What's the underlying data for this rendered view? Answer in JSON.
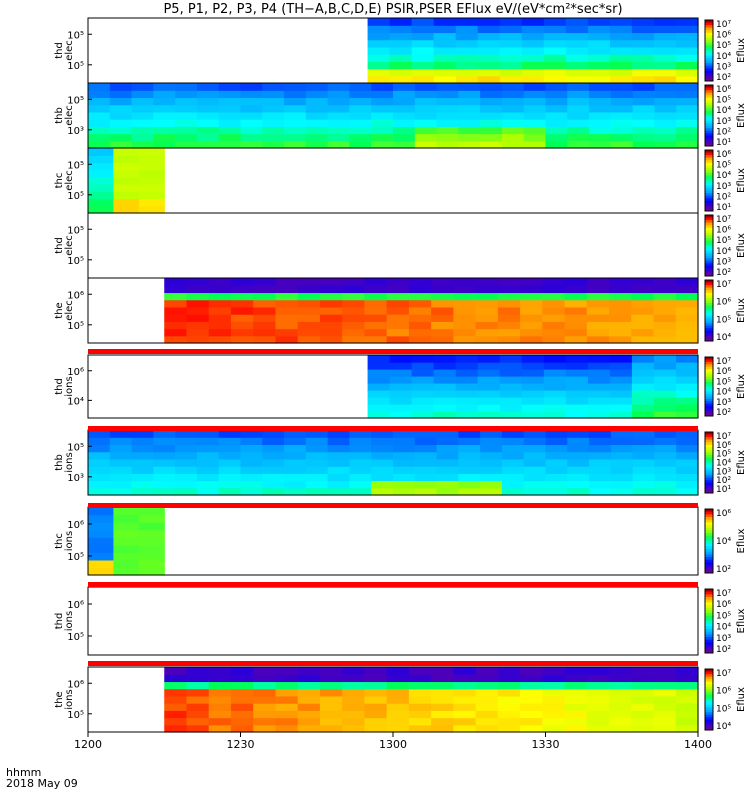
{
  "title": "P5, P1, P2, P3, P4 (TH−A,B,C,D,E) PSIR,PSER EFlux eV/(eV*cm²*sec*sr)",
  "footer": {
    "line1": "hhmm",
    "line2": "2018 May 09"
  },
  "chart_data": {
    "type": "heatmap",
    "x_ticks": [
      "1200",
      "1230",
      "1300",
      "1330",
      "1400"
    ],
    "xlim": [
      "1200",
      "1400"
    ],
    "colorbar_label": "Eflux",
    "panels": [
      {
        "ylabel": [
          "thd",
          "elec"
        ],
        "yticks": [
          "10⁵",
          "10⁵"
        ],
        "cbar_ticks": [
          "10⁷",
          "10⁶",
          "10⁵",
          "10⁴",
          "10³",
          "10²"
        ],
        "data_start": "1255",
        "data_end": "1400"
      },
      {
        "ylabel": [
          "thb",
          "elec"
        ],
        "yticks": [
          "10⁵",
          "10³"
        ],
        "cbar_ticks": [
          "10⁶",
          "10⁵",
          "10⁴",
          "10³",
          "10²",
          "10¹"
        ],
        "data_start": "1200",
        "data_end": "1400"
      },
      {
        "ylabel": [
          "thc",
          "elec"
        ],
        "yticks": [
          "10⁵",
          "10⁵"
        ],
        "cbar_ticks": [
          "10⁶",
          "10⁵",
          "10⁴",
          "10³",
          "10²",
          "10¹"
        ],
        "data_start": "1200",
        "data_end": "1215"
      },
      {
        "ylabel": [
          "thd",
          "elec"
        ],
        "yticks": [
          "10⁵",
          "10⁵"
        ],
        "cbar_ticks": [
          "10⁷",
          "10⁶",
          "10⁵",
          "10⁴",
          "10³",
          "10²"
        ],
        "data_start": null,
        "data_end": null
      },
      {
        "ylabel": [
          "the",
          "elec"
        ],
        "yticks": [
          "10⁶",
          "10⁵"
        ],
        "cbar_ticks": [
          "10⁷",
          "10⁶",
          "10⁵",
          "10⁴"
        ],
        "data_start": "1215",
        "data_end": "1400"
      },
      {
        "ylabel": [
          "thd",
          "ions"
        ],
        "yticks": [
          "10⁶",
          "10⁴"
        ],
        "cbar_ticks": [
          "10⁷",
          "10⁶",
          "10⁵",
          "10⁴",
          "10³",
          "10²"
        ],
        "data_start": "1255",
        "data_end": "1400"
      },
      {
        "ylabel": [
          "thb",
          "ions"
        ],
        "yticks": [
          "10⁵",
          "10³"
        ],
        "cbar_ticks": [
          "10⁷",
          "10⁶",
          "10⁵",
          "10⁴",
          "10³",
          "10²",
          "10¹"
        ],
        "data_start": "1200",
        "data_end": "1400"
      },
      {
        "ylabel": [
          "thc",
          "ions"
        ],
        "yticks": [
          "10⁶",
          "10⁵"
        ],
        "cbar_ticks": [
          "10⁶",
          "10⁴",
          "10²"
        ],
        "data_start": "1200",
        "data_end": "1215"
      },
      {
        "ylabel": [
          "thd",
          "ions"
        ],
        "yticks": [
          "10⁶",
          "10⁵"
        ],
        "cbar_ticks": [
          "10⁷",
          "10⁶",
          "10⁵",
          "10⁴",
          "10³",
          "10²"
        ],
        "data_start": null,
        "data_end": null
      },
      {
        "ylabel": [
          "the",
          "ions"
        ],
        "yticks": [
          "10⁶",
          "10⁵"
        ],
        "cbar_ticks": [
          "10⁷",
          "10⁶",
          "10⁵",
          "10⁴"
        ],
        "data_start": "1215",
        "data_end": "1400"
      }
    ]
  }
}
